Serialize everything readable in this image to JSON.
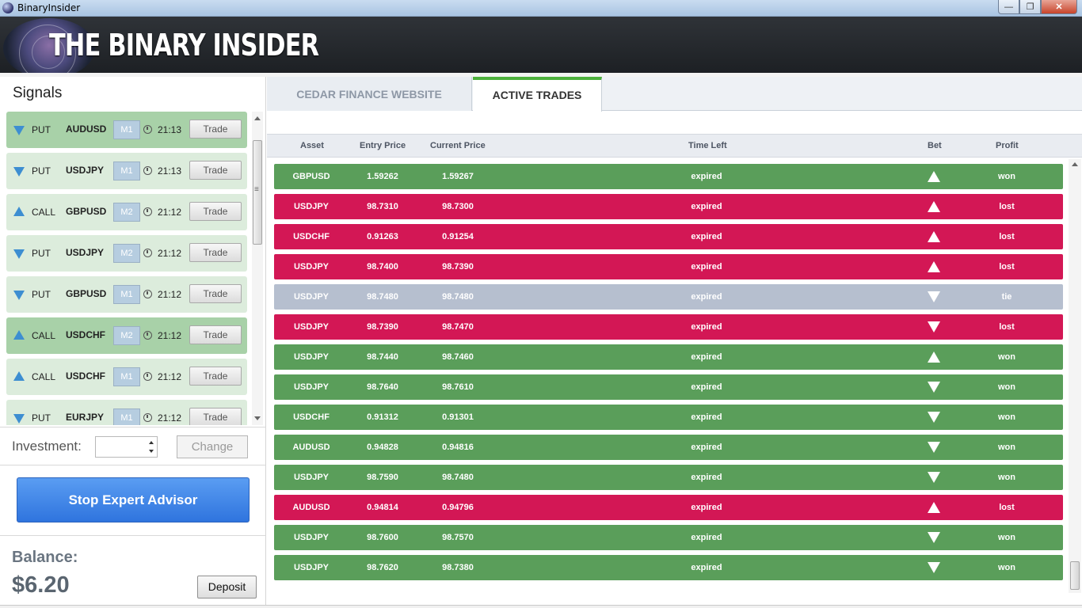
{
  "window": {
    "title": "BinaryInsider",
    "min": "—",
    "max": "❐",
    "close": "✕"
  },
  "header": {
    "logo_text": "THE BINARY INSIDER"
  },
  "signals": {
    "title": "Signals",
    "items": [
      {
        "dir": "PUT",
        "asset": "AUDUSD",
        "tf": "M1",
        "time": "21:13",
        "trade": "Trade",
        "arrow": "down",
        "shade": "dark"
      },
      {
        "dir": "PUT",
        "asset": "USDJPY",
        "tf": "M1",
        "time": "21:13",
        "trade": "Trade",
        "arrow": "down",
        "shade": "light"
      },
      {
        "dir": "CALL",
        "asset": "GBPUSD",
        "tf": "M2",
        "time": "21:12",
        "trade": "Trade",
        "arrow": "up",
        "shade": "light"
      },
      {
        "dir": "PUT",
        "asset": "USDJPY",
        "tf": "M2",
        "time": "21:12",
        "trade": "Trade",
        "arrow": "down",
        "shade": "light"
      },
      {
        "dir": "PUT",
        "asset": "GBPUSD",
        "tf": "M1",
        "time": "21:12",
        "trade": "Trade",
        "arrow": "down",
        "shade": "light"
      },
      {
        "dir": "CALL",
        "asset": "USDCHF",
        "tf": "M2",
        "time": "21:12",
        "trade": "Trade",
        "arrow": "up",
        "shade": "dark"
      },
      {
        "dir": "CALL",
        "asset": "USDCHF",
        "tf": "M1",
        "time": "21:12",
        "trade": "Trade",
        "arrow": "up",
        "shade": "light"
      },
      {
        "dir": "PUT",
        "asset": "EURJPY",
        "tf": "M1",
        "time": "21:12",
        "trade": "Trade",
        "arrow": "down",
        "shade": "light"
      }
    ]
  },
  "investment": {
    "label": "Investment:",
    "value": "",
    "change_label": "Change"
  },
  "expert": {
    "stop_label": "Stop Expert Advisor"
  },
  "balance": {
    "label": "Balance:",
    "value": "$6.20",
    "deposit_label": "Deposit"
  },
  "tabs": {
    "website": "CEDAR FINANCE WEBSITE",
    "active_trades": "ACTIVE TRADES"
  },
  "columns": {
    "asset": "Asset",
    "entry": "Entry Price",
    "current": "Current Price",
    "time_left": "Time Left",
    "bet": "Bet",
    "profit": "Profit"
  },
  "trades": [
    {
      "asset": "GBPUSD",
      "entry": "1.59262",
      "current": "1.59267",
      "time_left": "expired",
      "bet": "up",
      "profit": "won"
    },
    {
      "asset": "USDJPY",
      "entry": "98.7310",
      "current": "98.7300",
      "time_left": "expired",
      "bet": "up",
      "profit": "lost"
    },
    {
      "asset": "USDCHF",
      "entry": "0.91263",
      "current": "0.91254",
      "time_left": "expired",
      "bet": "up",
      "profit": "lost"
    },
    {
      "asset": "USDJPY",
      "entry": "98.7400",
      "current": "98.7390",
      "time_left": "expired",
      "bet": "up",
      "profit": "lost"
    },
    {
      "asset": "USDJPY",
      "entry": "98.7480",
      "current": "98.7480",
      "time_left": "expired",
      "bet": "down",
      "profit": "tie"
    },
    {
      "asset": "USDJPY",
      "entry": "98.7390",
      "current": "98.7470",
      "time_left": "expired",
      "bet": "down",
      "profit": "lost"
    },
    {
      "asset": "USDJPY",
      "entry": "98.7440",
      "current": "98.7460",
      "time_left": "expired",
      "bet": "up",
      "profit": "won"
    },
    {
      "asset": "USDJPY",
      "entry": "98.7640",
      "current": "98.7610",
      "time_left": "expired",
      "bet": "down",
      "profit": "won"
    },
    {
      "asset": "USDCHF",
      "entry": "0.91312",
      "current": "0.91301",
      "time_left": "expired",
      "bet": "down",
      "profit": "won"
    },
    {
      "asset": "AUDUSD",
      "entry": "0.94828",
      "current": "0.94816",
      "time_left": "expired",
      "bet": "down",
      "profit": "won"
    },
    {
      "asset": "USDJPY",
      "entry": "98.7590",
      "current": "98.7480",
      "time_left": "expired",
      "bet": "down",
      "profit": "won"
    },
    {
      "asset": "AUDUSD",
      "entry": "0.94814",
      "current": "0.94796",
      "time_left": "expired",
      "bet": "up",
      "profit": "lost"
    },
    {
      "asset": "USDJPY",
      "entry": "98.7600",
      "current": "98.7570",
      "time_left": "expired",
      "bet": "down",
      "profit": "won"
    },
    {
      "asset": "USDJPY",
      "entry": "98.7620",
      "current": "98.7380",
      "time_left": "expired",
      "bet": "down",
      "profit": "won"
    }
  ],
  "colors": {
    "won": "#5a9e5a",
    "lost": "#d31755",
    "tie": "#b6bfcf",
    "accent_tab": "#4db13c",
    "button_blue": "#3b82e6"
  }
}
